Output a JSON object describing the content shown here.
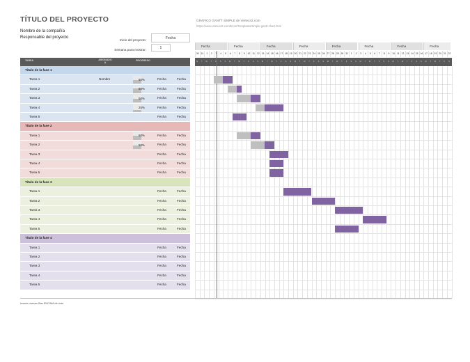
{
  "header": {
    "title": "TÍTULO DEL PROYECTO",
    "company": "Nombre de la compañía",
    "manager": "Responsable del proyecto",
    "brand": "GRÁFICO GANTT SIMPLE de Vertex42.com",
    "url": "https://www.vertex42.com/ExcelTemplates/simple-gantt-chart.html",
    "start_label": "Inicio del proyecto:",
    "start_value": "Fecha",
    "week_label": "Semana para mostrar:",
    "week_value": "1"
  },
  "table_headers": {
    "task": "TAREA",
    "assigned": "ASIGNADO A",
    "progress": "PROGRESO"
  },
  "footer_note": "Inserte nuevas filas ENCIMA de ésta",
  "timeline": {
    "week_labels": [
      "Fecha",
      "Fecha",
      "Fecha",
      "Fecha",
      "Fecha",
      "Fecha",
      "Fecha",
      "Fecha"
    ],
    "days": [
      "30",
      "31",
      "1",
      "2",
      "3",
      "4",
      "5",
      "6",
      "7",
      "8",
      "9",
      "10",
      "11",
      "12",
      "13",
      "14",
      "15",
      "16",
      "17",
      "18",
      "19",
      "20",
      "21",
      "22",
      "23",
      "24",
      "25",
      "26",
      "27",
      "28",
      "29",
      "30",
      "31",
      "1",
      "2",
      "3",
      "4",
      "5",
      "6",
      "7",
      "8",
      "9",
      "10",
      "11",
      "12",
      "13",
      "14",
      "15",
      "16",
      "17",
      "18",
      "19",
      "20",
      "21",
      "22"
    ],
    "dow": [
      "M",
      "T",
      "W",
      "T",
      "F",
      "S",
      "S"
    ]
  },
  "colors": {
    "phase1": "#dbe5f1",
    "phase1_head": "#c5d7ea",
    "phase2": "#f2dcdb",
    "phase2_head": "#e6b9b8",
    "phase3": "#ebf1de",
    "phase3_head": "#d8e4bc",
    "phase4": "#e4dfec",
    "phase4_head": "#ccc0da",
    "bar": "#8064a2",
    "today": "#c0504d"
  },
  "phases": [
    {
      "name": "Título de la fase 1",
      "tasks": [
        {
          "name": "Tarea 1",
          "assigned": "Nombre",
          "progress": "50%",
          "pct": 0.5,
          "start": "Fecha",
          "end": "Fecha",
          "bar_start_day": 4,
          "bar_days": 4
        },
        {
          "name": "Tarea 2",
          "assigned": "",
          "progress": "60%",
          "pct": 0.6,
          "start": "Fecha",
          "end": "Fecha",
          "bar_start_day": 7,
          "bar_days": 3
        },
        {
          "name": "Tarea 3",
          "assigned": "",
          "progress": "50%",
          "pct": 0.5,
          "start": "Fecha",
          "end": "Fecha",
          "bar_start_day": 9,
          "bar_days": 5
        },
        {
          "name": "Tarea 4",
          "assigned": "",
          "progress": "25%",
          "pct": 0.25,
          "start": "Fecha",
          "end": "Fecha",
          "bar_start_day": 13,
          "bar_days": 6
        },
        {
          "name": "Tarea 5",
          "assigned": "",
          "progress": "",
          "pct": 0,
          "start": "Fecha",
          "end": "Fecha",
          "bar_start_day": 8,
          "bar_days": 3
        }
      ]
    },
    {
      "name": "Título de la fase 2",
      "tasks": [
        {
          "name": "Tarea 1",
          "assigned": "",
          "progress": "50%",
          "pct": 0.5,
          "start": "Fecha",
          "end": "Fecha",
          "bar_start_day": 9,
          "bar_days": 5
        },
        {
          "name": "Tarea 2",
          "assigned": "",
          "progress": "50%",
          "pct": 0.5,
          "start": "Fecha",
          "end": "Fecha",
          "bar_start_day": 12,
          "bar_days": 5
        },
        {
          "name": "Tarea 3",
          "assigned": "",
          "progress": "",
          "pct": 0,
          "start": "Fecha",
          "end": "Fecha",
          "bar_start_day": 16,
          "bar_days": 4
        },
        {
          "name": "Tarea 4",
          "assigned": "",
          "progress": "",
          "pct": 0,
          "start": "Fecha",
          "end": "Fecha",
          "bar_start_day": 16,
          "bar_days": 3
        },
        {
          "name": "Tarea 5",
          "assigned": "",
          "progress": "",
          "pct": 0,
          "start": "Fecha",
          "end": "Fecha",
          "bar_start_day": 16,
          "bar_days": 3
        }
      ]
    },
    {
      "name": "Título de la fase 3",
      "tasks": [
        {
          "name": "Tarea 1",
          "assigned": "",
          "progress": "",
          "pct": 0,
          "start": "Fecha",
          "end": "Fecha",
          "bar_start_day": 19,
          "bar_days": 6
        },
        {
          "name": "Tarea 2",
          "assigned": "",
          "progress": "",
          "pct": 0,
          "start": "Fecha",
          "end": "Fecha",
          "bar_start_day": 25,
          "bar_days": 5
        },
        {
          "name": "Tarea 3",
          "assigned": "",
          "progress": "",
          "pct": 0,
          "start": "Fecha",
          "end": "Fecha",
          "bar_start_day": 30,
          "bar_days": 6
        },
        {
          "name": "Tarea 4",
          "assigned": "",
          "progress": "",
          "pct": 0,
          "start": "Fecha",
          "end": "Fecha",
          "bar_start_day": 36,
          "bar_days": 5
        },
        {
          "name": "Tarea 5",
          "assigned": "",
          "progress": "",
          "pct": 0,
          "start": "Fecha",
          "end": "Fecha",
          "bar_start_day": 30,
          "bar_days": 5
        }
      ]
    },
    {
      "name": "Título de la fase 4",
      "tasks": [
        {
          "name": "Tarea 1",
          "assigned": "",
          "progress": "",
          "pct": 0,
          "start": "Fecha",
          "end": "Fecha",
          "bar_start_day": -1,
          "bar_days": 0
        },
        {
          "name": "Tarea 2",
          "assigned": "",
          "progress": "",
          "pct": 0,
          "start": "Fecha",
          "end": "Fecha",
          "bar_start_day": -1,
          "bar_days": 0
        },
        {
          "name": "Tarea 3",
          "assigned": "",
          "progress": "",
          "pct": 0,
          "start": "Fecha",
          "end": "Fecha",
          "bar_start_day": -1,
          "bar_days": 0
        },
        {
          "name": "Tarea 4",
          "assigned": "",
          "progress": "",
          "pct": 0,
          "start": "Fecha",
          "end": "Fecha",
          "bar_start_day": -1,
          "bar_days": 0
        },
        {
          "name": "Tarea 5",
          "assigned": "",
          "progress": "",
          "pct": 0,
          "start": "Fecha",
          "end": "Fecha",
          "bar_start_day": -1,
          "bar_days": 0
        }
      ]
    }
  ],
  "today_day_index": 4
}
